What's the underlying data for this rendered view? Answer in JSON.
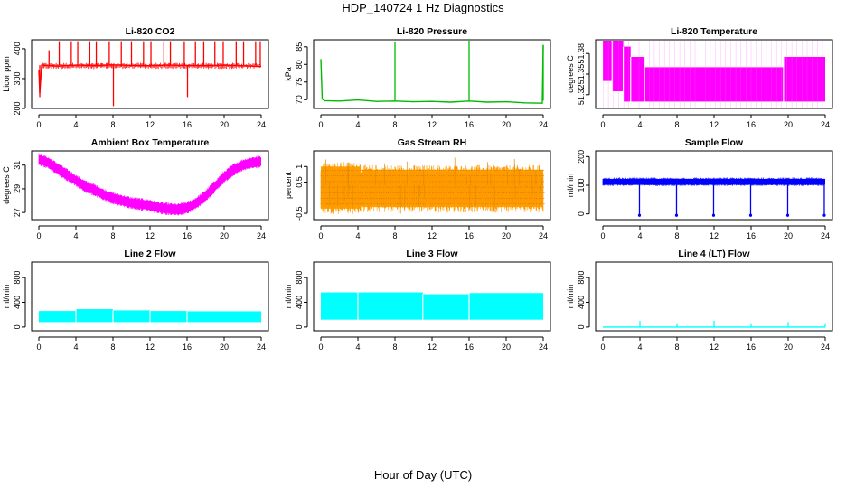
{
  "title": "HDP_140724  1 Hz Diagnostics",
  "xlabel": "Hour of Day (UTC)",
  "chart_data": [
    {
      "type": "line",
      "title": "Li-820 CO2",
      "ylabel": "Licor ppm",
      "color": "#ff0000",
      "xlim": [
        0,
        24
      ],
      "ylim": [
        200,
        430
      ],
      "xticks": [
        0,
        4,
        8,
        12,
        16,
        20,
        24
      ],
      "yticks": [
        200,
        300,
        400
      ],
      "series": [
        {
          "x": [
            0,
            0.1,
            0.3,
            2,
            4,
            6,
            8,
            10,
            12,
            14,
            16,
            18,
            20,
            22,
            24
          ],
          "y": [
            330,
            250,
            345,
            342,
            345,
            343,
            346,
            344,
            343,
            345,
            344,
            343,
            345,
            343,
            340
          ]
        }
      ],
      "spikes": [
        [
          0.1,
          238
        ],
        [
          1.1,
          395
        ],
        [
          2.2,
          425
        ],
        [
          3.5,
          425
        ],
        [
          4.2,
          425
        ],
        [
          5.5,
          425
        ],
        [
          6.2,
          425
        ],
        [
          7.6,
          425
        ],
        [
          8.05,
          208
        ],
        [
          8.9,
          425
        ],
        [
          10,
          425
        ],
        [
          11.3,
          425
        ],
        [
          12.1,
          425
        ],
        [
          13.5,
          425
        ],
        [
          14.2,
          425
        ],
        [
          15.7,
          425
        ],
        [
          16.05,
          238
        ],
        [
          16.9,
          425
        ],
        [
          17.8,
          425
        ],
        [
          19,
          425
        ],
        [
          19.9,
          425
        ],
        [
          21.3,
          425
        ],
        [
          22.1,
          425
        ],
        [
          23.4,
          425
        ],
        [
          23.9,
          425
        ]
      ]
    },
    {
      "type": "line",
      "title": "Li-820 Pressure",
      "ylabel": "kPa",
      "color": "#00bb00",
      "xlim": [
        0,
        24
      ],
      "ylim": [
        67.5,
        87
      ],
      "xticks": [
        0,
        4,
        8,
        12,
        16,
        20,
        24
      ],
      "yticks": [
        70,
        75,
        80,
        85
      ],
      "series": [
        {
          "x": [
            0,
            0.15,
            0.4,
            2,
            4,
            6,
            8,
            10,
            12,
            14,
            16,
            18,
            20,
            22,
            23.9,
            24
          ],
          "y": [
            81.5,
            70.2,
            69.7,
            69.6,
            69.9,
            69.5,
            69.6,
            69.4,
            69.5,
            69.3,
            69.6,
            69.3,
            69.4,
            69.1,
            69.0,
            85.5
          ]
        }
      ],
      "spikes": [
        [
          8,
          86.5
        ],
        [
          16,
          86.8
        ],
        [
          24,
          85.5
        ]
      ]
    },
    {
      "type": "area",
      "title": "Li-820 Temperature",
      "ylabel": "degrees C",
      "color": "#ff00ff",
      "xlim": [
        0,
        24
      ],
      "ylim": [
        51.3,
        51.4
      ],
      "xticks": [
        0,
        4,
        8,
        12,
        16,
        20,
        24
      ],
      "yticks": [
        51.32,
        51.35,
        51.38
      ],
      "bands": [
        {
          "x0": 0,
          "x1": 1.0,
          "low": 51.34,
          "high": 51.4
        },
        {
          "x0": 1.0,
          "x1": 2.2,
          "low": 51.325,
          "high": 51.4
        },
        {
          "x0": 2.2,
          "x1": 3.0,
          "low": 51.31,
          "high": 51.39
        },
        {
          "x0": 3.0,
          "x1": 4.5,
          "low": 51.31,
          "high": 51.375
        },
        {
          "x0": 4.5,
          "x1": 19.5,
          "low": 51.31,
          "high": 51.36
        },
        {
          "x0": 19.5,
          "x1": 24,
          "low": 51.31,
          "high": 51.375
        }
      ]
    },
    {
      "type": "area",
      "title": "Ambient Box Temperature",
      "ylabel": "degrees C",
      "color": "#ff00ff",
      "xlim": [
        0,
        24
      ],
      "ylim": [
        26.4,
        32.2
      ],
      "xticks": [
        0,
        4,
        8,
        12,
        16,
        20,
        24
      ],
      "yticks": [
        27,
        29,
        31
      ],
      "series": [
        {
          "x": [
            0,
            1,
            2,
            3,
            4,
            5,
            6,
            7,
            8,
            9,
            10,
            11,
            12,
            13,
            14,
            15,
            16,
            17,
            18,
            19,
            20,
            21,
            22,
            23,
            24
          ],
          "y": [
            31.5,
            31.2,
            30.7,
            30.2,
            29.7,
            29.2,
            28.9,
            28.5,
            28.2,
            28.0,
            27.8,
            27.7,
            27.6,
            27.4,
            27.3,
            27.25,
            27.4,
            27.8,
            28.4,
            29.2,
            30.0,
            30.6,
            31.0,
            31.2,
            31.3
          ]
        }
      ],
      "spread": 0.35
    },
    {
      "type": "area",
      "title": "Gas Stream RH",
      "ylabel": "percent",
      "color": "#ffa500",
      "xlim": [
        0,
        24
      ],
      "ylim": [
        -0.7,
        1.5
      ],
      "xticks": [
        0,
        4,
        8,
        12,
        16,
        20,
        24
      ],
      "yticks": [
        -0.5,
        0.5,
        1
      ],
      "bands": [
        {
          "x0": 0,
          "x1": 4.3,
          "low": -0.35,
          "high": 1.0
        },
        {
          "x0": 4.3,
          "x1": 24,
          "low": -0.3,
          "high": 0.9
        }
      ],
      "spike_range": [
        -0.6,
        1.35
      ]
    },
    {
      "type": "line",
      "title": "Sample Flow",
      "ylabel": "ml/min",
      "color": "#0000ff",
      "xlim": [
        0,
        24
      ],
      "ylim": [
        -20,
        220
      ],
      "xticks": [
        0,
        4,
        8,
        12,
        16,
        20,
        24
      ],
      "yticks": [
        0,
        100,
        200
      ],
      "band": {
        "low": 102,
        "high": 122
      },
      "dips": [
        [
          3.95,
          -5
        ],
        [
          7.95,
          -5
        ],
        [
          11.95,
          -5
        ],
        [
          15.95,
          -5
        ],
        [
          19.95,
          -5
        ],
        [
          23.9,
          -5
        ]
      ]
    },
    {
      "type": "area",
      "title": "Line 2 Flow",
      "ylabel": "ml/min",
      "color": "#00ffff",
      "xlim": [
        0,
        24
      ],
      "ylim": [
        -60,
        1050
      ],
      "xticks": [
        0,
        4,
        8,
        12,
        16,
        20,
        24
      ],
      "yticks": [
        0,
        400,
        800
      ],
      "bands": [
        {
          "x0": 0,
          "x1": 4,
          "low": 80,
          "high": 260
        },
        {
          "x0": 4,
          "x1": 8,
          "low": 80,
          "high": 290
        },
        {
          "x0": 8,
          "x1": 12,
          "low": 80,
          "high": 270
        },
        {
          "x0": 12,
          "x1": 16,
          "low": 80,
          "high": 260
        },
        {
          "x0": 16,
          "x1": 24,
          "low": 80,
          "high": 255
        }
      ]
    },
    {
      "type": "area",
      "title": "Line 3 Flow",
      "ylabel": "ml/min",
      "color": "#00ffff",
      "xlim": [
        0,
        24
      ],
      "ylim": [
        -60,
        1050
      ],
      "xticks": [
        0,
        4,
        8,
        12,
        16,
        20,
        24
      ],
      "yticks": [
        0,
        400,
        800
      ],
      "bands": [
        {
          "x0": 0,
          "x1": 4,
          "low": 120,
          "high": 560
        },
        {
          "x0": 4,
          "x1": 11,
          "low": 120,
          "high": 560
        },
        {
          "x0": 11,
          "x1": 16,
          "low": 120,
          "high": 530
        },
        {
          "x0": 16,
          "x1": 24,
          "low": 120,
          "high": 550
        }
      ]
    },
    {
      "type": "line",
      "title": "Line 4 (LT) Flow",
      "ylabel": "ml/min",
      "color": "#00ffff",
      "xlim": [
        0,
        24
      ],
      "ylim": [
        -60,
        1050
      ],
      "xticks": [
        0,
        4,
        8,
        12,
        16,
        20,
        24
      ],
      "yticks": [
        0,
        400,
        800
      ],
      "series": [
        {
          "x": [
            0,
            24
          ],
          "y": [
            0,
            0
          ]
        }
      ],
      "spikes": [
        [
          4,
          100
        ],
        [
          8,
          60
        ],
        [
          12,
          100
        ],
        [
          16,
          60
        ],
        [
          20,
          80
        ],
        [
          24,
          60
        ]
      ]
    }
  ]
}
